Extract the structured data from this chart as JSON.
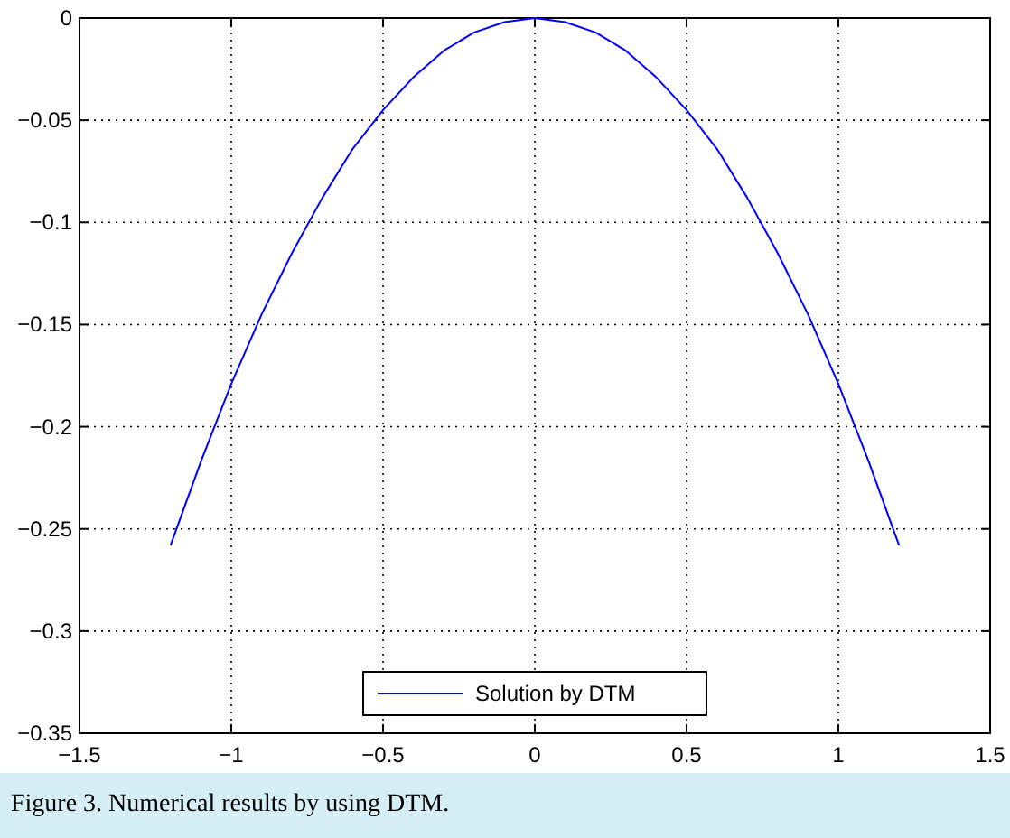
{
  "chart_data": {
    "type": "line",
    "x": [
      -1.2,
      -1.1,
      -1.0,
      -0.9,
      -0.8,
      -0.7,
      -0.6,
      -0.5,
      -0.4,
      -0.3,
      -0.2,
      -0.1,
      0,
      0.1,
      0.2,
      0.3,
      0.4,
      0.5,
      0.6,
      0.7,
      0.8,
      0.9,
      1.0,
      1.1,
      1.2
    ],
    "series": [
      {
        "name": "Solution by DTM",
        "color": "#0000ff",
        "values": [
          -0.258,
          -0.217,
          -0.179,
          -0.145,
          -0.115,
          -0.088,
          -0.064,
          -0.045,
          -0.029,
          -0.016,
          -0.007,
          -0.002,
          0,
          -0.002,
          -0.007,
          -0.016,
          -0.029,
          -0.045,
          -0.064,
          -0.088,
          -0.115,
          -0.145,
          -0.179,
          -0.217,
          -0.258
        ]
      }
    ],
    "xlim": [
      -1.5,
      1.5
    ],
    "ylim": [
      -0.35,
      0
    ],
    "xticks": [
      {
        "value": -1.5,
        "label": "−1.5"
      },
      {
        "value": -1,
        "label": "−1"
      },
      {
        "value": -0.5,
        "label": "−0.5"
      },
      0,
      0.5,
      1,
      1.5
    ],
    "yticks": [
      {
        "value": -0.35,
        "label": "−0.35"
      },
      {
        "value": -0.3,
        "label": "−0.3"
      },
      {
        "value": -0.25,
        "label": "−0.25"
      },
      {
        "value": -0.2,
        "label": "−0.2"
      },
      {
        "value": -0.15,
        "label": "−0.15"
      },
      {
        "value": -0.1,
        "label": "−0.1"
      },
      {
        "value": -0.05,
        "label": "−0.05"
      },
      0
    ],
    "grid": true,
    "legend": "bottom",
    "line_style": "solid",
    "marker": "none",
    "annotations": [
      "Figure 3. Numerical results by using DTM."
    ]
  }
}
